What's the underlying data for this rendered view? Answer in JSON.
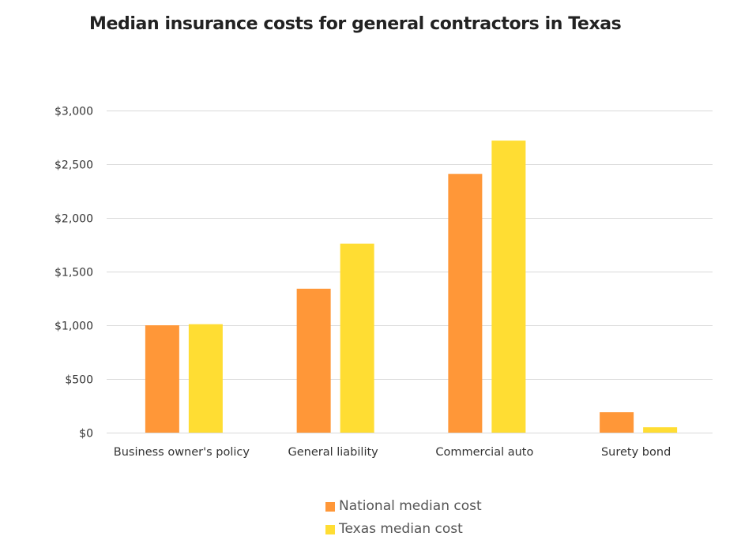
{
  "chart_data": {
    "type": "bar",
    "title": "Median insurance costs for general contractors in Texas",
    "xlabel": "",
    "ylabel": "",
    "categories": [
      "Business owner's policy",
      "General liability",
      "Commercial auto",
      "Surety bond"
    ],
    "series": [
      {
        "name": "National median cost",
        "color": "#FF9738",
        "values": [
          1000,
          1340,
          2410,
          190
        ]
      },
      {
        "name": "Texas median cost",
        "color": "#FFDD33",
        "values": [
          1010,
          1760,
          2720,
          50
        ]
      }
    ],
    "ylim": [
      0,
      3000
    ],
    "yticks": [
      0,
      500,
      1000,
      1500,
      2000,
      2500,
      3000
    ],
    "ytick_labels": [
      "$0",
      "$500",
      "$1,000",
      "$1,500",
      "$2,000",
      "$2,500",
      "$3,000"
    ],
    "grid": true,
    "legend_position": "bottom-center",
    "gridline_color": "#D9D9D9"
  }
}
